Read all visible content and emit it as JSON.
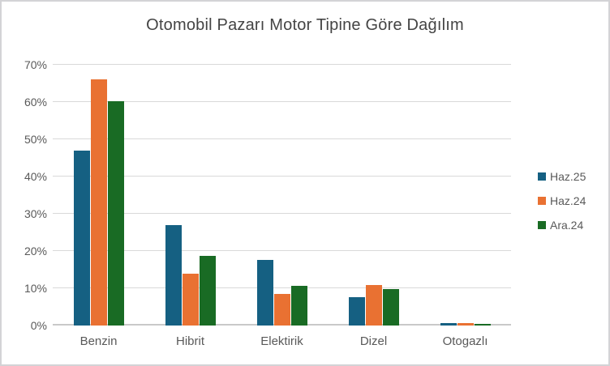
{
  "window": {
    "background": "#ffffff",
    "border_color": "#d3d3d6"
  },
  "chart_data": {
    "type": "bar",
    "title": "Otomobil Pazarı Motor Tipine Göre Dağılım",
    "categories": [
      "Benzin",
      "Hibrit",
      "Elektirik",
      "Dizel",
      "Otogazlı"
    ],
    "series": [
      {
        "name": "Haz.25",
        "color": "#156082",
        "values": [
          47.0,
          26.9,
          17.6,
          7.7,
          0.7
        ]
      },
      {
        "name": "Haz.24",
        "color": "#E97132",
        "values": [
          66.0,
          13.9,
          8.5,
          10.8,
          0.7
        ]
      },
      {
        "name": "Ara.24",
        "color": "#196B24",
        "values": [
          60.2,
          18.8,
          10.7,
          9.8,
          0.5
        ]
      }
    ],
    "ylim": [
      0,
      70
    ],
    "yticks": [
      "0%",
      "10%",
      "20%",
      "30%",
      "40%",
      "50%",
      "60%",
      "70%"
    ],
    "grid": true,
    "legend_position": "right",
    "xlabel": "",
    "ylabel": "",
    "colors": {
      "gridline": "#d9d9d9",
      "axis_line": "#c9c9c9",
      "tick_text": "#595959",
      "title_text": "#444444"
    }
  }
}
